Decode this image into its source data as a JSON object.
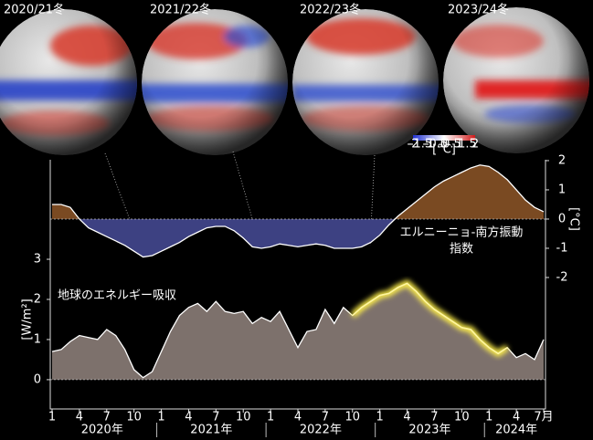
{
  "panels": [
    {
      "label": "2020/21冬"
    },
    {
      "label": "2021/22冬"
    },
    {
      "label": "2022/23冬"
    },
    {
      "label": "2023/24冬"
    }
  ],
  "colorbar": {
    "ticks": [
      -2,
      -1.5,
      -1,
      -0.5,
      0,
      0.5,
      1,
      1.5,
      2
    ],
    "unit": "[°C]"
  },
  "chart_data": {
    "type": "area",
    "categories": [
      "1",
      null,
      null,
      "4",
      null,
      null,
      "7",
      null,
      null,
      "10",
      null,
      null,
      "1",
      null,
      null,
      "4",
      null,
      null,
      "7",
      null,
      null,
      "10",
      null,
      null,
      "1",
      null,
      null,
      "4",
      null,
      null,
      "7",
      null,
      null,
      "10",
      null,
      null,
      "1",
      null,
      null,
      "4",
      null,
      null,
      "7",
      null,
      null,
      "10",
      null,
      null,
      "1",
      null,
      null,
      "4",
      null,
      null,
      "7月"
    ],
    "x_group_labels": [
      "2020年",
      "2021年",
      "2022年",
      "2023年",
      "2024年"
    ],
    "ylabel": "[W/m²]",
    "y2label": "[°C]",
    "ylim": [
      -0.73,
      5.48
    ],
    "yticks": [
      0,
      1,
      2,
      3
    ],
    "y2lim": [
      -6.5,
      2.03
    ],
    "y2ticks": [
      2,
      1,
      0,
      -1,
      -2
    ],
    "annotations": [
      "エルニーニョ-南方振動",
      "指数",
      "地球のエネルギー吸収"
    ],
    "series": [
      {
        "axis": "y2",
        "color": "#7a4a22",
        "negative_color": "#3d4182",
        "values": [
          0.5,
          0.5,
          0.4,
          0.0,
          -0.3,
          -0.45,
          -0.6,
          -0.75,
          -0.9,
          -1.1,
          -1.3,
          -1.25,
          -1.1,
          -0.95,
          -0.8,
          -0.6,
          -0.45,
          -0.3,
          -0.25,
          -0.25,
          -0.4,
          -0.65,
          -0.95,
          -1.0,
          -0.95,
          -0.85,
          -0.9,
          -0.95,
          -0.9,
          -0.85,
          -0.9,
          -1.0,
          -1.0,
          -1.0,
          -0.95,
          -0.8,
          -0.55,
          -0.2,
          0.1,
          0.35,
          0.6,
          0.85,
          1.1,
          1.3,
          1.45,
          1.6,
          1.75,
          1.85,
          1.8,
          1.6,
          1.35,
          1.0,
          0.65,
          0.4,
          0.25
        ]
      },
      {
        "axis": "y",
        "color": "#7d716c",
        "values": [
          0.7,
          0.75,
          0.95,
          1.1,
          1.05,
          1.0,
          1.25,
          1.1,
          0.75,
          0.25,
          0.05,
          0.2,
          0.7,
          1.2,
          1.6,
          1.8,
          1.9,
          1.7,
          1.95,
          1.7,
          1.65,
          1.7,
          1.4,
          1.55,
          1.45,
          1.7,
          1.25,
          0.8,
          1.2,
          1.25,
          1.75,
          1.4,
          1.8,
          1.6,
          1.8,
          1.95,
          2.1,
          2.15,
          2.3,
          2.4,
          2.2,
          1.95,
          1.75,
          1.6,
          1.45,
          1.3,
          1.25,
          1.0,
          0.8,
          0.65,
          0.8,
          0.55,
          0.65,
          0.5,
          1.0
        ]
      }
    ]
  }
}
